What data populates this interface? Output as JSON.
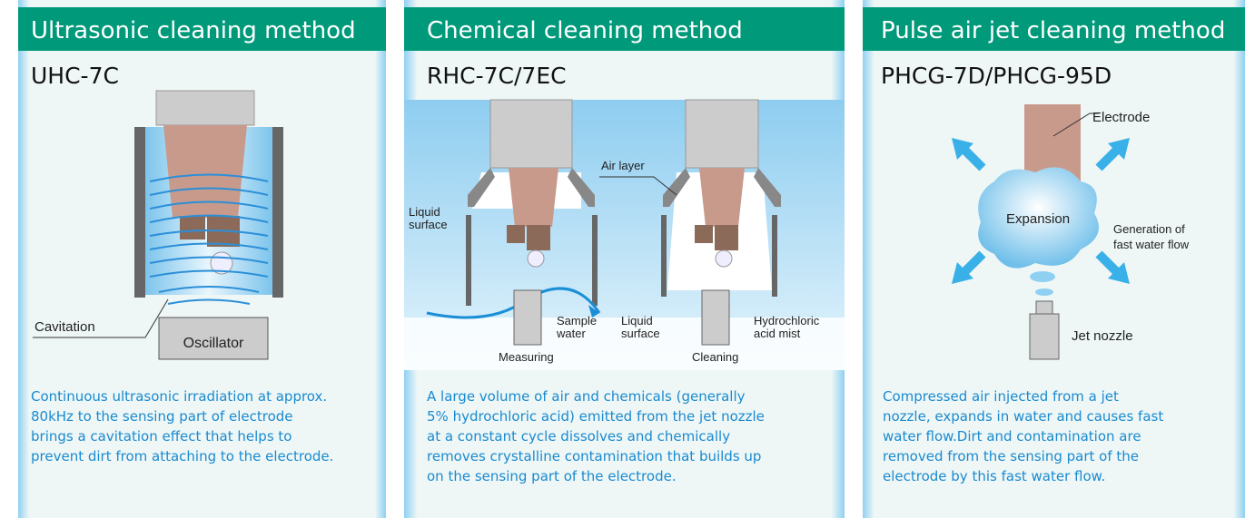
{
  "panels": [
    {
      "title": "Ultrasonic cleaning method",
      "model": "UHC-7C",
      "labels": {
        "cavitation": "Cavitation",
        "oscillator": "Oscillator"
      },
      "description": [
        "Continuous ultrasonic irradiation at approx.",
        "80kHz to the sensing part of electrode",
        "brings a cavitation effect that helps to",
        "prevent dirt from attaching to the electrode."
      ]
    },
    {
      "title": "Chemical cleaning method",
      "model": "RHC-7C/7EC",
      "labels": {
        "air_layer": "Air layer",
        "liquid_surface_1": [
          "Liquid",
          "surface"
        ],
        "sample_water": [
          "Sample",
          "water"
        ],
        "measuring": "Measuring",
        "liquid_surface_2": [
          "Liquid",
          "surface"
        ],
        "cleaning": "Cleaning",
        "acid_mist": [
          "Hydrochloric",
          "acid mist"
        ]
      },
      "description": [
        "A large volume of air and chemicals (generally",
        "5% hydrochloric acid) emitted from the jet nozzle",
        "at a constant cycle dissolves and chemically",
        "removes crystalline contamination that builds up",
        "on the sensing part of the electrode."
      ]
    },
    {
      "title": "Pulse air jet cleaning method",
      "model": "PHCG-7D/PHCG-95D",
      "labels": {
        "electrode": "Electrode",
        "expansion": "Expansion",
        "generation": [
          "Generation of",
          "fast water flow"
        ],
        "jet_nozzle": "Jet nozzle"
      },
      "description": [
        "Compressed air injected from a jet",
        "nozzle, expands in water and causes fast",
        "water flow.Dirt and contamination are",
        "removed from the sensing part of the",
        "electrode by this fast water flow."
      ]
    }
  ]
}
